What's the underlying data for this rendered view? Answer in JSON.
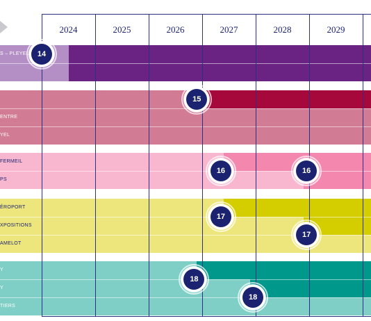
{
  "header": {
    "years": [
      "2024",
      "2025",
      "2026",
      "2027",
      "2028",
      "2029"
    ],
    "arrow_icon": "arrow-right-icon"
  },
  "lines": [
    {
      "id": "14",
      "badge": "14",
      "base_color": "#b48fc5",
      "active_color": "#6a2383",
      "rows": [
        {
          "label": "S – PLEYEL",
          "active_from": 2024.5
        },
        {
          "label": "",
          "active_from": 2024.5
        }
      ],
      "badges": [
        {
          "label": "14",
          "year": 2024.0,
          "row": 0.5
        }
      ]
    },
    {
      "id": "15",
      "badge": "15",
      "base_color": "#d17b95",
      "active_color": "#a6083b",
      "rows": [
        {
          "label": "",
          "active_from": 2027.0
        },
        {
          "label": "ENTRE",
          "active_from": null
        },
        {
          "label": "YEL",
          "active_from": null
        }
      ],
      "badges": [
        {
          "label": "15",
          "year": 2026.9,
          "row": 0.5
        }
      ]
    },
    {
      "id": "16",
      "badge": "16",
      "base_color": "#f8b7cf",
      "active_color": "#f487ae",
      "rows": [
        {
          "label": "FERMEIL",
          "active_from": 2027.4
        },
        {
          "label": "PS",
          "active_from": 2028.9
        }
      ],
      "badges": [
        {
          "label": "16",
          "year": 2027.35,
          "row": 1.0
        },
        {
          "label": "16",
          "year": 2028.95,
          "row": 1.0
        }
      ]
    },
    {
      "id": "17",
      "badge": "17",
      "base_color": "#ece67c",
      "active_color": "#d4cd00",
      "rows": [
        {
          "label": "ÉROPORT",
          "active_from": 2027.4
        },
        {
          "label": "XPOSITIONS",
          "active_from": 2028.9
        },
        {
          "label": "AMELOT",
          "active_from": null
        }
      ],
      "badges": [
        {
          "label": "17",
          "year": 2027.35,
          "row": 1.0
        },
        {
          "label": "17",
          "year": 2028.95,
          "row": 2.0
        }
      ]
    },
    {
      "id": "18",
      "badge": "18",
      "base_color": "#7fcfc6",
      "active_color": "#00988a",
      "rows": [
        {
          "label": "Y",
          "active_from": 2026.9
        },
        {
          "label": "Y",
          "active_from": 2027.9
        },
        {
          "label": "TIERS",
          "active_from": null
        }
      ],
      "badges": [
        {
          "label": "18",
          "year": 2026.85,
          "row": 1.0
        },
        {
          "label": "18",
          "year": 2027.95,
          "row": 2.0
        }
      ]
    }
  ]
}
